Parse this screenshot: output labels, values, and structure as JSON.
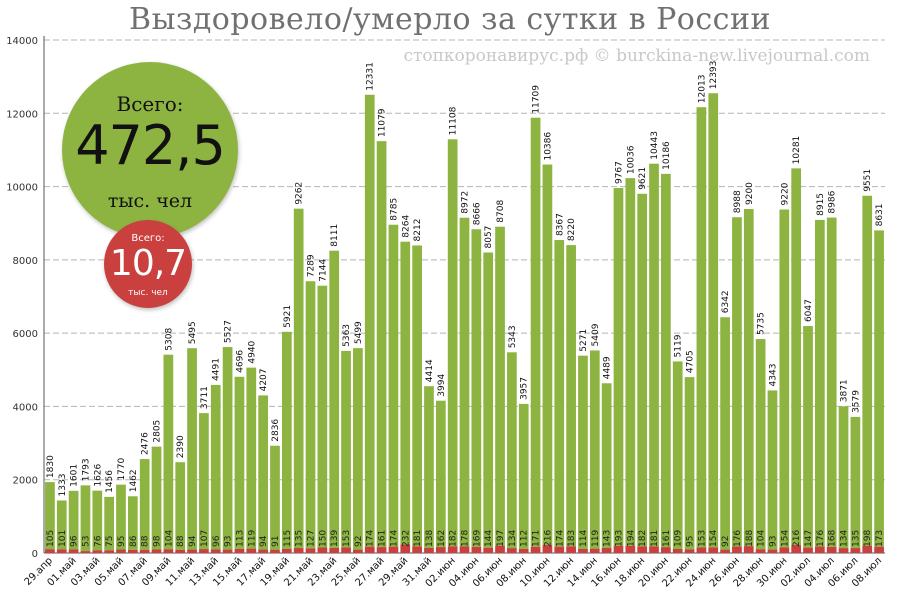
{
  "header": {
    "title": "Выздоровело/умерло за сутки в России",
    "subtitle": "стопкоронавирус.рф © burckina-new.livejournal.com"
  },
  "totals": {
    "recovered": {
      "label": "Всего:",
      "value": "472,5",
      "unit": "тыс. чел",
      "color": "#8db441"
    },
    "deaths": {
      "label": "Всего:",
      "value": "10,7",
      "unit": "тыс. чел",
      "color": "#c9403f"
    }
  },
  "chart_data": {
    "type": "bar",
    "stacked": true,
    "title": "Выздоровело/умерло за сутки в России",
    "xlabel": "",
    "ylabel": "",
    "ylim": [
      0,
      14000
    ],
    "yticks": [
      0,
      2000,
      4000,
      6000,
      8000,
      10000,
      12000,
      14000
    ],
    "grid": true,
    "colors": {
      "recovered": "#8db441",
      "deaths": "#c9403f"
    },
    "x_tick_labels": [
      "29.апр",
      "01.май",
      "03.май",
      "05.май",
      "07.май",
      "09.май",
      "11.май",
      "13.май",
      "15.май",
      "17.май",
      "19.май",
      "21.май",
      "23.май",
      "25.май",
      "27.май",
      "29.май",
      "31.май",
      "02.июн",
      "04.июн",
      "06.июн",
      "08.июн",
      "10.июн",
      "12.июн",
      "14.июн",
      "16.июн",
      "18.июн",
      "20.июн",
      "22.июн",
      "24.июн",
      "26.июн",
      "28.июн",
      "30.июн",
      "02.июл",
      "04.июл",
      "06.июл",
      "08.июл"
    ],
    "series": [
      {
        "key": "recovered",
        "values": [
          1830,
          1333,
          1601,
          1793,
          1626,
          1456,
          1770,
          1462,
          2476,
          2805,
          5308,
          2390,
          5495,
          3711,
          4491,
          5527,
          4696,
          4940,
          4207,
          2836,
          5921,
          9262,
          7289,
          7144,
          8111,
          5363,
          5499,
          12331,
          11079,
          8785,
          8264,
          8212,
          4414,
          3994,
          11108,
          8972,
          8666,
          8057,
          8708,
          5343,
          3957,
          11709,
          10386,
          8367,
          8220,
          5271,
          5409,
          4489,
          9767,
          10036,
          9621,
          10443,
          10186,
          5119,
          4705,
          12013,
          12393,
          6342,
          8988,
          9200,
          5735,
          4343,
          9220,
          10281,
          6047,
          8915,
          8986,
          3871,
          3579,
          9551,
          8631
        ]
      },
      {
        "key": "deaths",
        "values": [
          105,
          101,
          96,
          53,
          76,
          75,
          95,
          86,
          88,
          98,
          104,
          88,
          94,
          107,
          96,
          93,
          113,
          119,
          94,
          91,
          115,
          135,
          127,
          150,
          139,
          153,
          92,
          174,
          161,
          174,
          232,
          181,
          138,
          162,
          182,
          178,
          169,
          144,
          197,
          134,
          112,
          171,
          216,
          174,
          183,
          114,
          119,
          143,
          193,
          194,
          182,
          181,
          161,
          109,
          95,
          153,
          154,
          92,
          176,
          188,
          104,
          93,
          154,
          216,
          147,
          176,
          168,
          134,
          135,
          198,
          173
        ]
      }
    ]
  }
}
